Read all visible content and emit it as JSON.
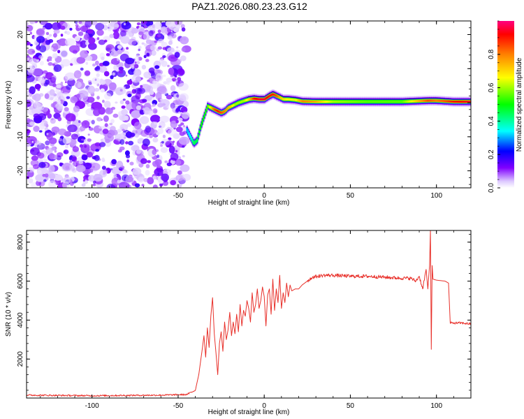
{
  "title": "PAZ1.2026.080.23.23.G12",
  "chart_data": [
    {
      "type": "heatmap",
      "name": "spectrogram",
      "xlabel": "Height of straight line (km)",
      "ylabel": "Frequency (Hz)",
      "xlim": [
        -138,
        120
      ],
      "ylim": [
        -25,
        24
      ],
      "x_ticks": [
        -100,
        -50,
        0,
        50,
        100
      ],
      "y_ticks": [
        -20,
        -10,
        0,
        10,
        20
      ],
      "x_tick_labels": [
        "-100",
        "-50",
        "0",
        "50",
        "100"
      ],
      "y_tick_labels": [
        "-20",
        "-10",
        "0",
        "10",
        "20"
      ],
      "noise_region_x": [
        -138,
        -45
      ],
      "signal_track": {
        "x": [
          -45,
          -43,
          -41,
          -39,
          -37,
          -35,
          -33,
          -31,
          -29,
          -27,
          -25,
          -23,
          -21,
          -19,
          -17,
          -15,
          -12,
          -9,
          -6,
          -3,
          0,
          3,
          5,
          7,
          9,
          11,
          14,
          18,
          22,
          30,
          40,
          60,
          80,
          95,
          100,
          110,
          120
        ],
        "frequency": [
          -8,
          -10,
          -12,
          -11,
          -7,
          -4,
          -1,
          -1.5,
          -2,
          -2.5,
          -3,
          -2.5,
          -1.5,
          -1,
          -0.5,
          0,
          0.5,
          1,
          1.2,
          1,
          1,
          2,
          2.5,
          2,
          1.5,
          1,
          1,
          0.8,
          0.4,
          0.3,
          0.3,
          0.3,
          0.3,
          0.6,
          0.6,
          0.3,
          0.3
        ],
        "amplitude": [
          0.3,
          0.35,
          0.45,
          0.45,
          0.5,
          0.5,
          0.55,
          0.7,
          0.85,
          0.9,
          0.85,
          0.8,
          0.75,
          0.7,
          0.6,
          0.6,
          0.6,
          0.7,
          0.9,
          0.95,
          0.95,
          0.9,
          0.9,
          0.85,
          0.75,
          0.7,
          0.65,
          0.65,
          0.8,
          0.75,
          0.6,
          0.55,
          0.55,
          0.85,
          0.8,
          0.9,
          0.95
        ]
      },
      "colorbar": {
        "label": "Normalized spectral amplitude",
        "ticks": [
          0.0,
          0.2,
          0.4,
          0.6,
          0.8
        ],
        "tick_labels": [
          "0.0",
          "0.2",
          "0.4",
          "0.6",
          "0.8"
        ],
        "range": [
          0,
          1
        ],
        "colors": [
          "#ffffff",
          "#dcc8ff",
          "#8000ff",
          "#0000ff",
          "#00ffff",
          "#00ff00",
          "#ffff00",
          "#ff8000",
          "#ff0000",
          "#ff0080"
        ]
      }
    },
    {
      "type": "line",
      "name": "snr",
      "xlabel": "Height of straight line (km)",
      "ylabel": "SNR (10 * v/v)",
      "xlim": [
        -138,
        120
      ],
      "ylim": [
        0,
        8600
      ],
      "x_ticks": [
        -100,
        -50,
        0,
        50,
        100
      ],
      "y_ticks": [
        2000,
        4000,
        6000,
        8000
      ],
      "x_tick_labels": [
        "-100",
        "-50",
        "0",
        "50",
        "100"
      ],
      "y_tick_labels": [
        "2000",
        "4000",
        "6000",
        "8000"
      ],
      "color": "#e8302a",
      "series": [
        {
          "name": "SNR",
          "x": [
            -138,
            -100,
            -60,
            -45,
            -40,
            -38,
            -36,
            -35,
            -34,
            -33,
            -32,
            -31,
            -30,
            -29,
            -28,
            -27,
            -26,
            -25,
            -24,
            -23,
            -22,
            -21,
            -20,
            -19,
            -18,
            -17,
            -16,
            -15,
            -14,
            -13,
            -12,
            -11,
            -10,
            -9,
            -8,
            -7,
            -6,
            -5,
            -4,
            -3,
            -2,
            -1,
            0,
            1,
            2,
            3,
            4,
            5,
            6,
            7,
            8,
            9,
            10,
            11,
            12,
            13,
            14,
            15,
            16,
            18,
            20,
            22,
            25,
            28,
            31,
            35,
            40,
            50,
            60,
            70,
            80,
            85,
            88,
            90,
            92,
            94,
            95,
            96,
            96.5,
            97,
            97.5,
            98,
            100,
            105,
            107,
            108,
            110,
            115,
            120
          ],
          "y": [
            150,
            120,
            150,
            180,
            400,
            1200,
            2500,
            3200,
            2100,
            3600,
            2600,
            4200,
            5150,
            3300,
            2300,
            1200,
            2800,
            3400,
            2400,
            3900,
            3000,
            3500,
            4400,
            3200,
            3900,
            3300,
            4300,
            3400,
            4800,
            3700,
            4500,
            4200,
            5000,
            4600,
            3900,
            5400,
            4400,
            4800,
            5600,
            4600,
            5000,
            5700,
            5200,
            3700,
            5300,
            5600,
            4300,
            6100,
            4500,
            5600,
            4900,
            6300,
            4600,
            5400,
            4900,
            5900,
            5200,
            5800,
            5500,
            5600,
            5600,
            5800,
            6000,
            6200,
            6250,
            6300,
            6300,
            6250,
            6250,
            6200,
            6150,
            6150,
            6000,
            6250,
            5600,
            6600,
            5600,
            6800,
            8600,
            2500,
            6800,
            6100,
            6050,
            6000,
            5900,
            3850,
            3850,
            3850,
            3800
          ]
        }
      ]
    }
  ]
}
